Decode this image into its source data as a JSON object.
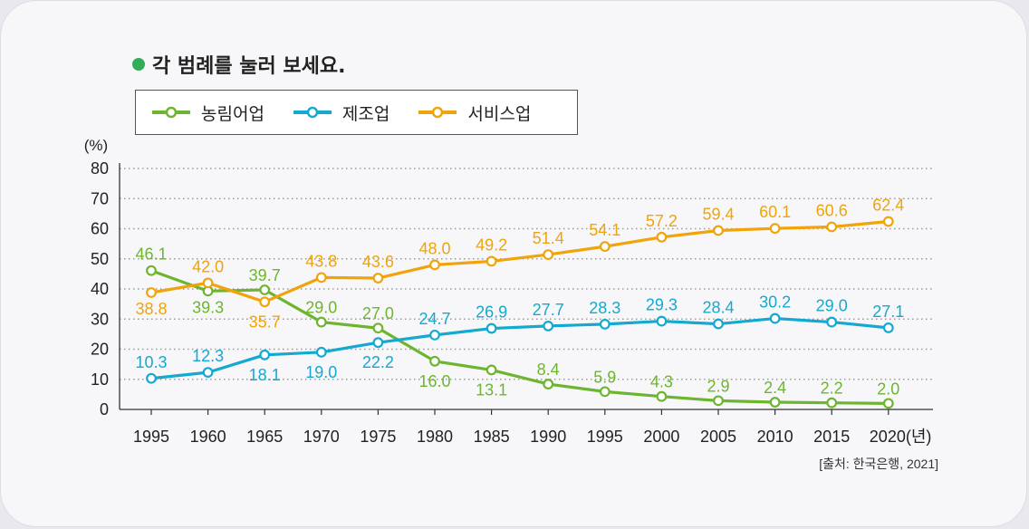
{
  "instruction": "각 범례를 눌러 보세요.",
  "colors": {
    "instruction_dot": "#2fae5a",
    "agriculture": "#6eb52f",
    "manufacturing": "#13a9d0",
    "service": "#f0a30a"
  },
  "chart_data": {
    "type": "line",
    "ylabel": "(%)",
    "xlabel": "(년)",
    "ylim": [
      0,
      80
    ],
    "yticks": [
      0,
      10,
      20,
      30,
      40,
      50,
      60,
      70,
      80
    ],
    "grid": true,
    "legend_position": "top-left",
    "categories": [
      "1995",
      "1960",
      "1965",
      "1970",
      "1975",
      "1980",
      "1985",
      "1990",
      "1995",
      "2000",
      "2005",
      "2010",
      "2015",
      "2020"
    ],
    "series": [
      {
        "name": "농림어업",
        "values": [
          46.1,
          39.3,
          39.7,
          29.0,
          27.0,
          16.0,
          13.1,
          8.4,
          5.9,
          4.3,
          2.9,
          2.4,
          2.2,
          2.0
        ]
      },
      {
        "name": "제조업",
        "values": [
          10.3,
          12.3,
          18.1,
          19.0,
          22.2,
          24.7,
          26.9,
          27.7,
          28.3,
          29.3,
          28.4,
          30.2,
          29.0,
          27.1
        ]
      },
      {
        "name": "서비스업",
        "values": [
          38.8,
          42.0,
          35.7,
          43.8,
          43.6,
          48.0,
          49.2,
          51.4,
          54.1,
          57.2,
          59.4,
          60.1,
          60.6,
          62.4
        ]
      }
    ],
    "source": "[출처: 한국은행, 2021]"
  }
}
